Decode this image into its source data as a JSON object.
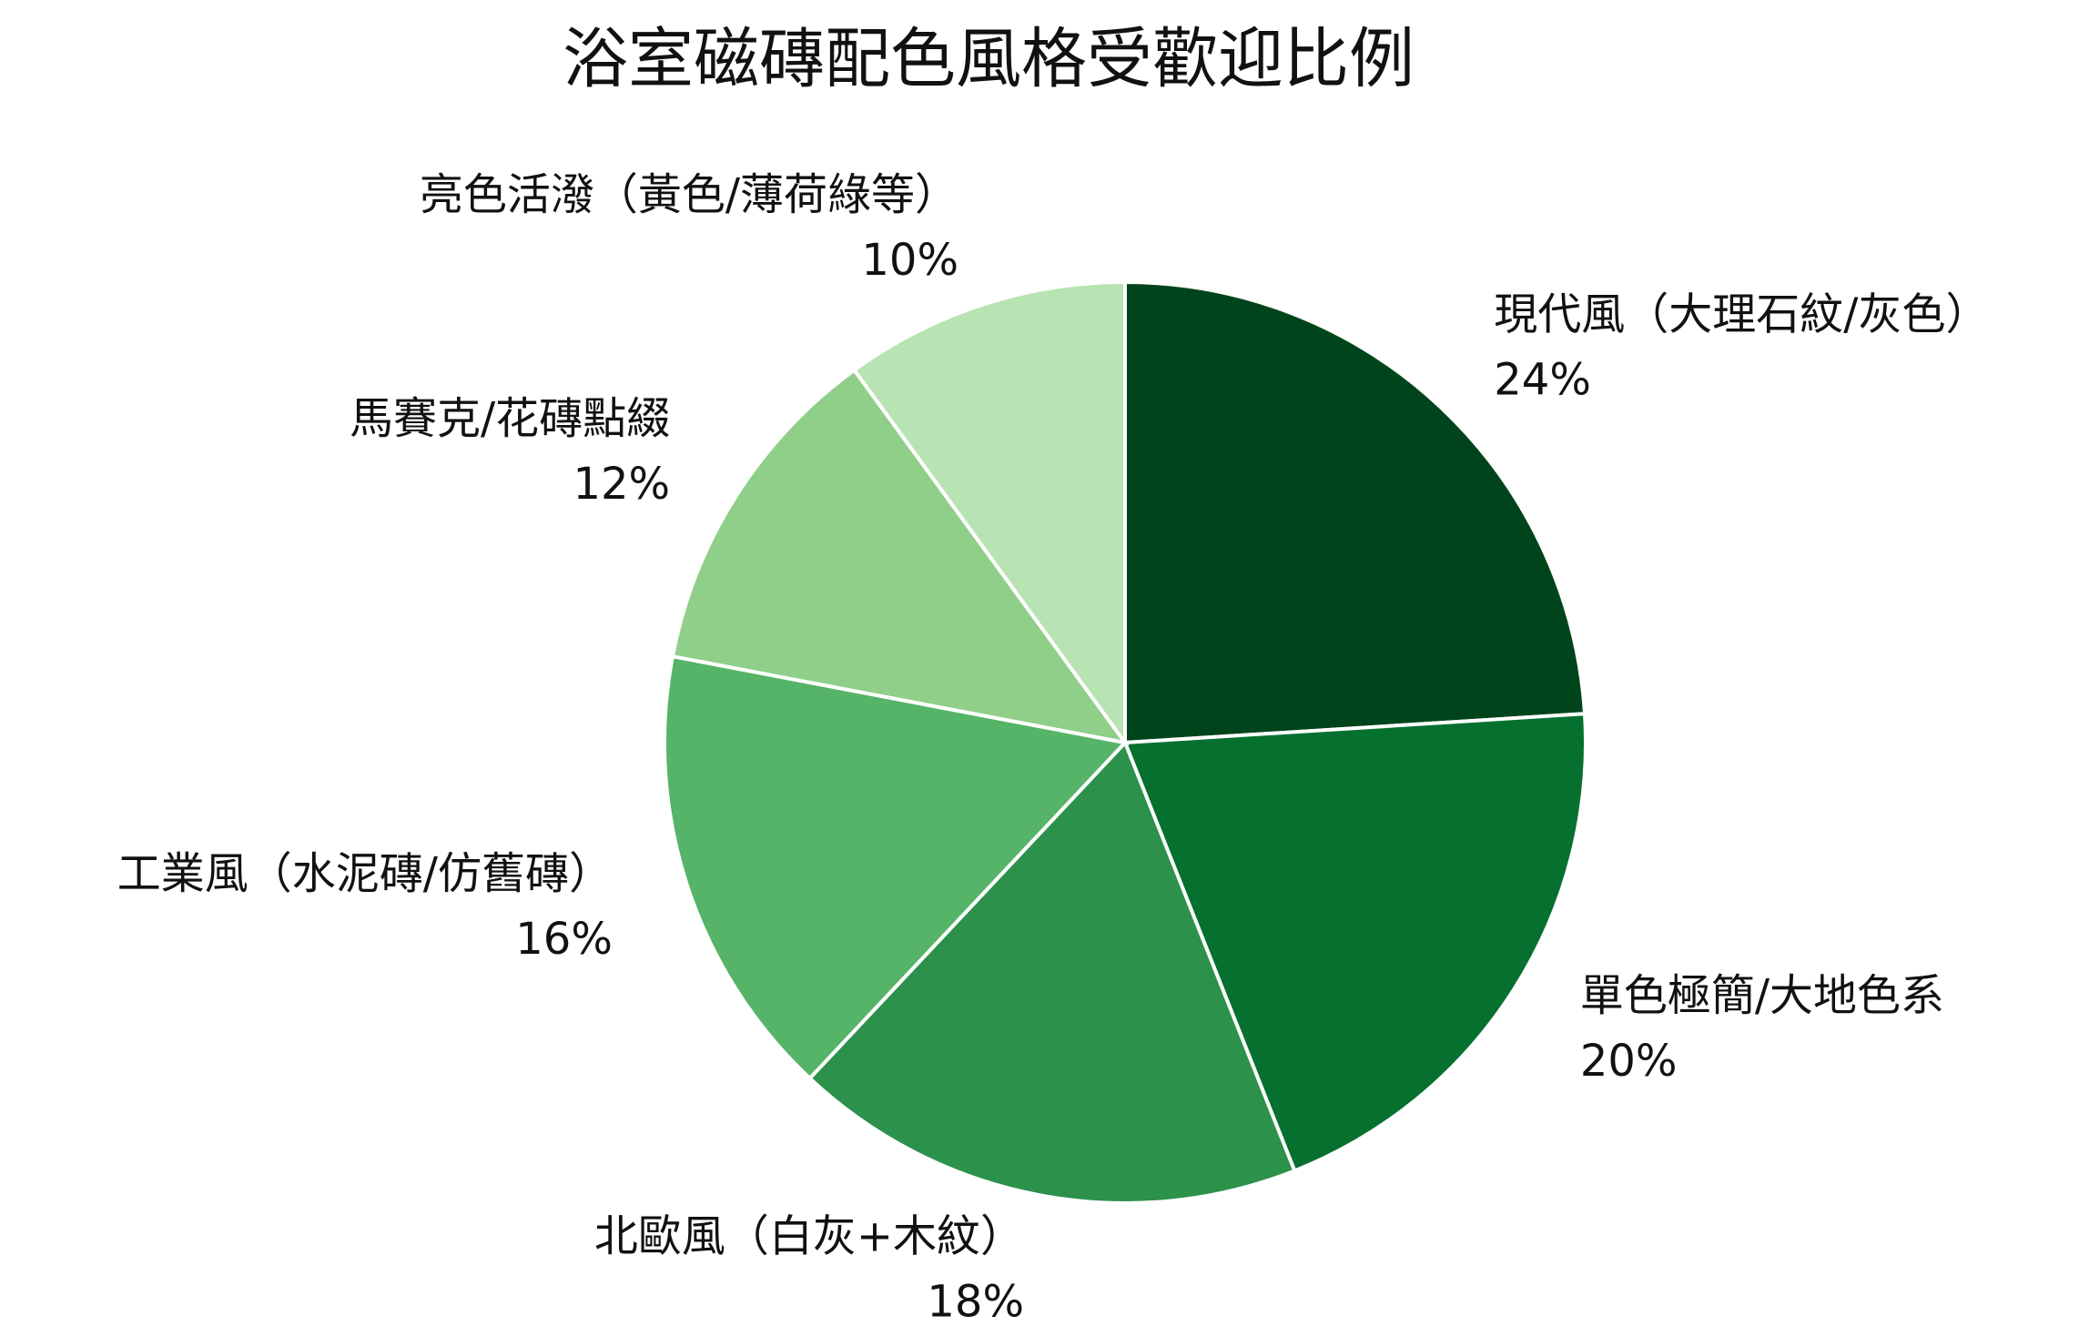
{
  "chart_data": {
    "type": "pie",
    "title": "浴室磁磚配色風格受歡迎比例",
    "categories": [
      "現代風（大理石紋/灰色）",
      "單色極簡/大地色系",
      "北歐風（白灰+木紋）",
      "工業風（水泥磚/仿舊磚）",
      "馬賽克/花磚點綴",
      "亮色活潑（黃色/薄荷綠等）"
    ],
    "values": [
      24,
      20,
      18,
      16,
      12,
      10
    ],
    "value_labels": [
      "24%",
      "20%",
      "18%",
      "16%",
      "12%",
      "10%"
    ],
    "colors": [
      "#00441b",
      "#06702f",
      "#2c914b",
      "#55b467",
      "#8fcf89",
      "#b8e3b2"
    ]
  }
}
